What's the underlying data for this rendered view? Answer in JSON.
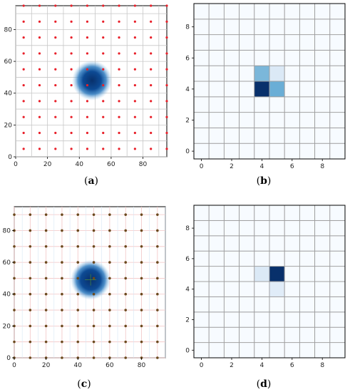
{
  "colors": {
    "grid_light": "#c7c7c7",
    "grid_pink": "#f2c4c4",
    "cell_edge": "#9e9e9e",
    "heat_low": "#f7fbff",
    "heat_high": "#08306b",
    "point_red": "#e8202a",
    "point_brown": "#6b4a1e",
    "blob_dark": "#08306b",
    "blob_mid": "#2f7cc0"
  },
  "captions": {
    "a": {
      "open": "(",
      "letter": "a",
      "close": ")"
    },
    "b": {
      "open": "(",
      "letter": "b",
      "close": ")"
    },
    "c": {
      "open": "(",
      "letter": "c",
      "close": ")"
    },
    "d": {
      "open": "(",
      "letter": "d",
      "close": ")"
    }
  },
  "chart_data": [
    {
      "panel": "a",
      "type": "scatter",
      "title": "",
      "xlabel": "",
      "ylabel": "",
      "xlim": [
        0,
        95
      ],
      "ylim": [
        0,
        95
      ],
      "xticks": [
        0,
        20,
        40,
        60,
        80
      ],
      "yticks": [
        0,
        20,
        40,
        60,
        80
      ],
      "grid": true,
      "grid_spacing": 10,
      "points": {
        "x": [
          5,
          15,
          25,
          35,
          45,
          55,
          65,
          75,
          85,
          95
        ],
        "y": [
          5,
          15,
          25,
          35,
          45,
          55,
          65,
          75,
          85,
          95
        ],
        "color": "red"
      },
      "blob": {
        "x": 48,
        "y": 48,
        "radius": 6
      }
    },
    {
      "panel": "b",
      "type": "heatmap",
      "title": "",
      "xlabel": "",
      "ylabel": "",
      "xticks": [
        0,
        2,
        4,
        6,
        8
      ],
      "yticks": [
        0,
        2,
        4,
        6,
        8
      ],
      "rows": 10,
      "cols": 10,
      "cells": [
        {
          "x": 4,
          "y": 4,
          "value": 1.0
        },
        {
          "x": 5,
          "y": 4,
          "value": 0.45
        },
        {
          "x": 4,
          "y": 5,
          "value": 0.4
        },
        {
          "x": 5,
          "y": 5,
          "value": 0.12
        }
      ]
    },
    {
      "panel": "c",
      "type": "scatter",
      "title": "",
      "xlabel": "",
      "ylabel": "",
      "xlim": [
        0,
        95
      ],
      "ylim": [
        0,
        95
      ],
      "xticks": [
        0,
        20,
        40,
        60,
        80
      ],
      "yticks": [
        0,
        20,
        40,
        60,
        80
      ],
      "grid": true,
      "grid_spacing": 10,
      "points": {
        "x": [
          0,
          10,
          20,
          30,
          40,
          50,
          60,
          70,
          80,
          90
        ],
        "y": [
          0,
          10,
          20,
          30,
          40,
          50,
          60,
          70,
          80,
          90
        ],
        "color": "brown"
      },
      "blob": {
        "x": 48,
        "y": 49,
        "radius": 6
      }
    },
    {
      "panel": "d",
      "type": "heatmap",
      "title": "",
      "xlabel": "",
      "ylabel": "",
      "xticks": [
        0,
        2,
        4,
        6,
        8
      ],
      "yticks": [
        0,
        2,
        4,
        6,
        8
      ],
      "rows": 10,
      "cols": 10,
      "cells": [
        {
          "x": 5,
          "y": 5,
          "value": 1.0
        },
        {
          "x": 4,
          "y": 5,
          "value": 0.12
        },
        {
          "x": 5,
          "y": 4,
          "value": 0.1
        }
      ]
    }
  ]
}
